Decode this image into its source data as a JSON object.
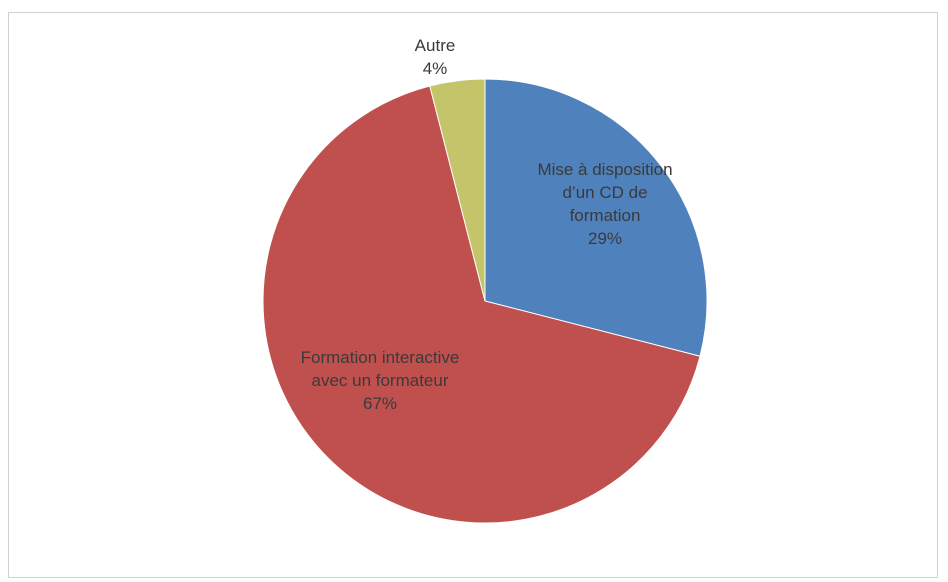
{
  "chart_data": {
    "type": "pie",
    "categories": [
      "Mise à disposition d’un CD de formation",
      "Formation interactive avec un formateur",
      "Autre"
    ],
    "values": [
      29,
      67,
      4
    ],
    "value_labels": [
      "29%",
      "67%",
      "4%"
    ],
    "colors": [
      "#4f81bd",
      "#c0504d",
      "#c4c46a"
    ]
  }
}
